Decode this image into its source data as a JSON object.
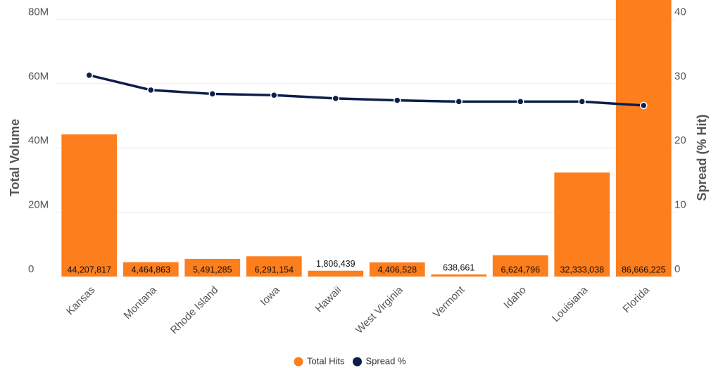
{
  "chart_data": {
    "type": "bar_line",
    "categories": [
      "Kansas",
      "Montana",
      "Rhode Island",
      "Iowa",
      "Hawaii",
      "West Virginia",
      "Vermont",
      "Idaho",
      "Louisiana",
      "Florida"
    ],
    "series": [
      {
        "name": "Total Hits",
        "color": "#fd7e1d",
        "type": "bar",
        "values": [
          44207817,
          4464863,
          5491285,
          6291154,
          1806439,
          4406528,
          638661,
          6624796,
          32333038,
          86666225
        ],
        "value_labels": [
          "44,207,817",
          "4,464,863",
          "5,491,285",
          "6,291,154",
          "1,806,439",
          "4,406,528",
          "638,661",
          "6,624,796",
          "32,333,038",
          "86,666,225"
        ]
      },
      {
        "name": "Spread %",
        "color": "#0c1f4b",
        "type": "line",
        "axis": "y2",
        "values": [
          31.3,
          29.0,
          28.4,
          28.2,
          27.7,
          27.4,
          27.2,
          27.2,
          27.2,
          26.6
        ]
      }
    ],
    "y_label": "Total Volume",
    "y2_label": "Spread (% Hit)",
    "ylim": [
      0,
      86000000
    ],
    "yticks": [
      0,
      {
        "value": 20000000,
        "label": "20M"
      },
      {
        "value": 40000000,
        "label": "40M"
      },
      {
        "value": 60000000,
        "label": "60M"
      },
      {
        "value": 80000000,
        "label": "80M"
      }
    ],
    "y2lim": [
      0,
      43
    ],
    "y2ticks": [
      0,
      10,
      20,
      30,
      40
    ],
    "grid": true,
    "legend": "bottom"
  }
}
